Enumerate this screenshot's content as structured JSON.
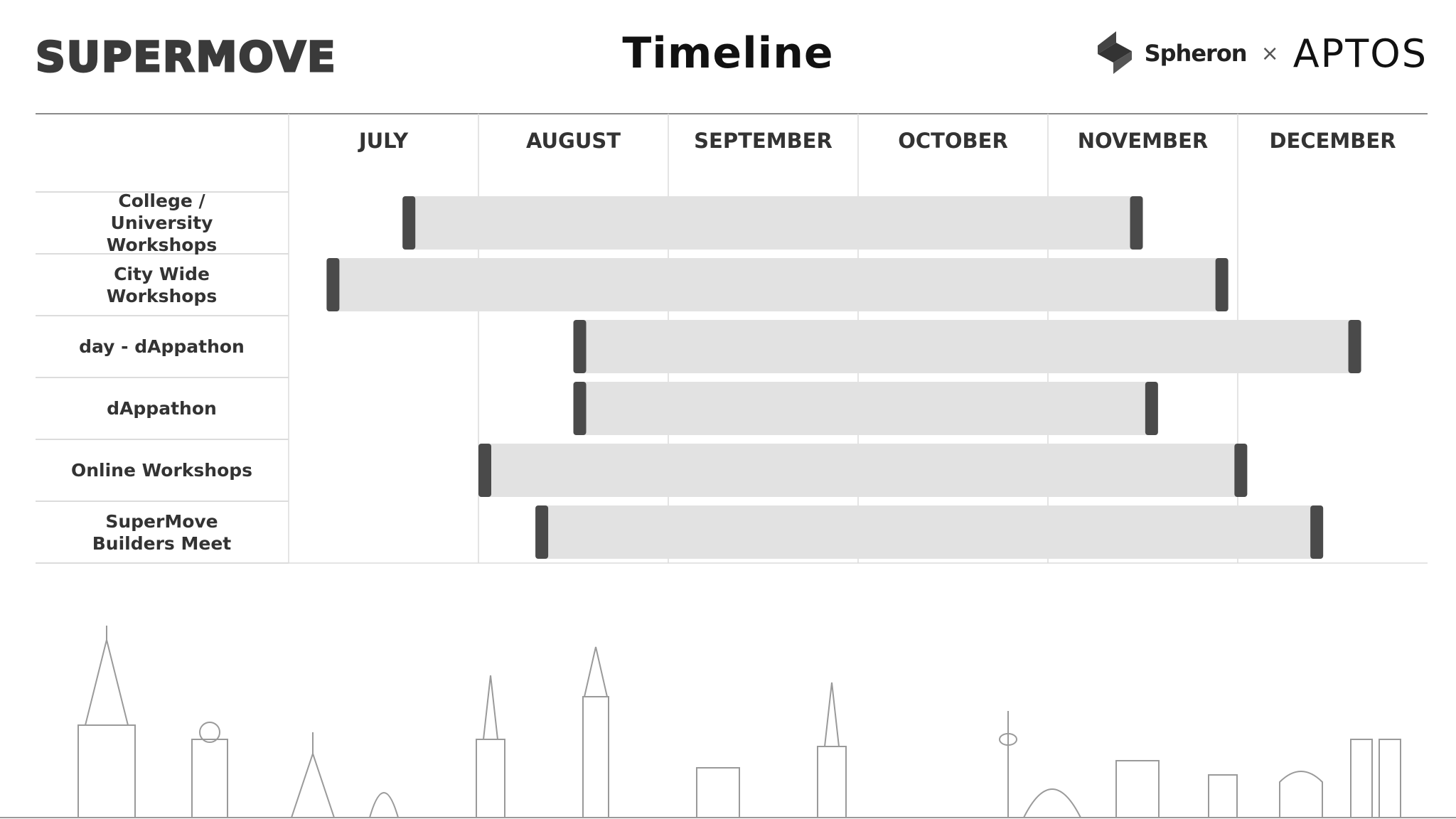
{
  "header": {
    "brand": "SUPERMOVE",
    "title": "Timeline",
    "partner_1": "Spheron",
    "separator": "×",
    "partner_2": "APTOS"
  },
  "chart_data": {
    "type": "gantt",
    "title": "Timeline",
    "months": [
      "JULY",
      "AUGUST",
      "SEPTEMBER",
      "OCTOBER",
      "NOVEMBER",
      "DECEMBER"
    ],
    "x_unit": "months from July 1",
    "xlim": [
      0,
      6
    ],
    "grid": true,
    "tasks": [
      {
        "name": "College / University Workshops",
        "start": 0.6,
        "end": 4.5
      },
      {
        "name": "City Wide Workshops",
        "start": 0.2,
        "end": 4.95
      },
      {
        "name": "day - dAppathon",
        "start": 1.5,
        "end": 5.65
      },
      {
        "name": "dAppathon",
        "start": 1.5,
        "end": 4.58
      },
      {
        "name": "Online Workshops",
        "start": 1.0,
        "end": 5.05
      },
      {
        "name": "SuperMove Builders Meet",
        "start": 1.3,
        "end": 5.45
      }
    ],
    "colors": {
      "bar_fill": "#e2e2e2",
      "bar_cap": "#4a4a4a",
      "grid": "#dcdcdc"
    }
  }
}
